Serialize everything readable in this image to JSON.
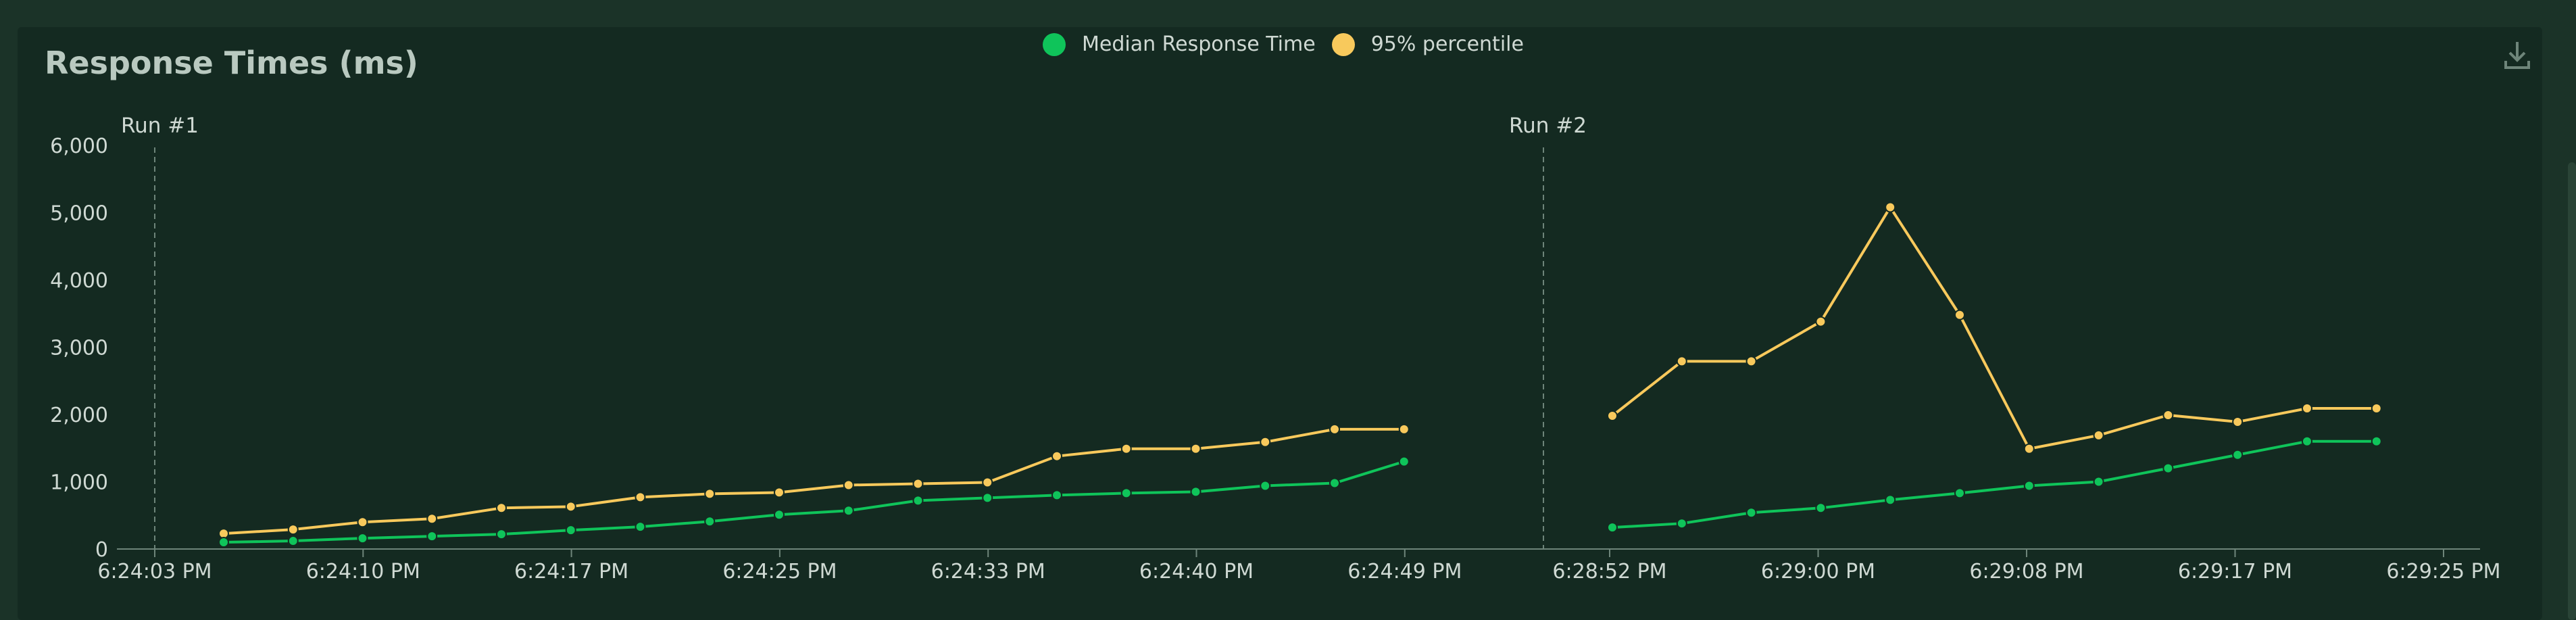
{
  "colors": {
    "median": "#0fc45a",
    "p95": "#f8c95c",
    "grid_line": "#6e857a",
    "axis": "#6e857a",
    "text": "#cfd9d3"
  },
  "icons": {
    "download": "download-icon"
  },
  "chart_data": {
    "type": "line",
    "title": "Response Times (ms)",
    "legend_position": "top-center",
    "ylim": [
      0,
      6000
    ],
    "y_ticks": [
      "6,000",
      "5,000",
      "4,000",
      "3,000",
      "2,000",
      "1,000",
      "0"
    ],
    "y_tick_values": [
      6000,
      5000,
      4000,
      3000,
      2000,
      1000,
      0
    ],
    "series_names": [
      "Median Response Time",
      "95% percentile"
    ],
    "runs": [
      {
        "label": "Run #1",
        "x_ticks": [
          "6:24:03 PM",
          "6:24:10 PM",
          "6:24:17 PM",
          "6:24:25 PM",
          "6:24:33 PM",
          "6:24:40 PM",
          "6:24:49 PM"
        ],
        "median": [
          100,
          120,
          160,
          190,
          220,
          280,
          330,
          410,
          510,
          570,
          720,
          760,
          800,
          830,
          850,
          940,
          980,
          1300
        ],
        "p95": [
          230,
          290,
          400,
          450,
          610,
          630,
          770,
          820,
          840,
          950,
          970,
          990,
          1380,
          1490,
          1490,
          1590,
          1780,
          1780
        ]
      },
      {
        "label": "Run #2",
        "x_ticks": [
          "6:28:52 PM",
          "6:29:00 PM",
          "6:29:08 PM",
          "6:29:17 PM",
          "6:29:25 PM"
        ],
        "median": [
          320,
          380,
          540,
          610,
          730,
          830,
          940,
          1000,
          1200,
          1400,
          1600,
          1600
        ],
        "p95": [
          1980,
          2790,
          2790,
          3380,
          5080,
          3480,
          1490,
          1690,
          1990,
          1890,
          2090,
          2090
        ]
      }
    ]
  }
}
